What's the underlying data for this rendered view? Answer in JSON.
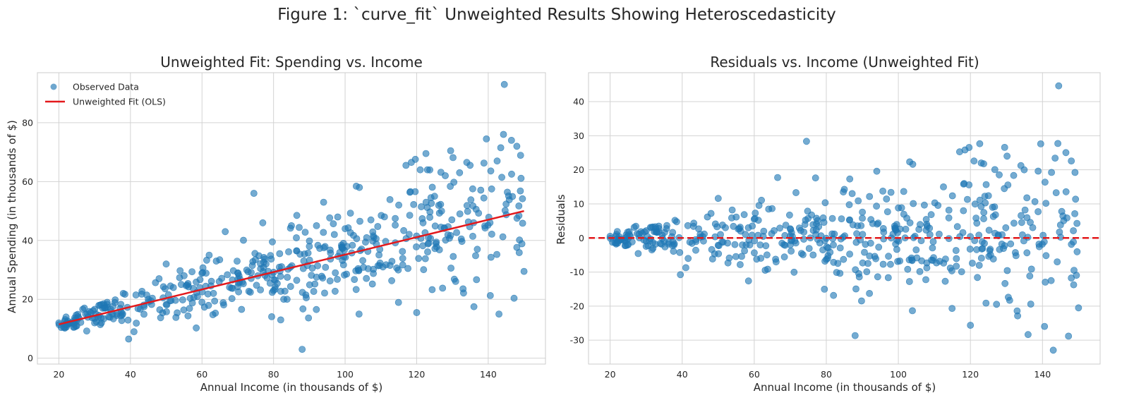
{
  "figure": {
    "suptitle": "Figure 1: `curve_fit` Unweighted Results Showing Heteroscedasticity"
  },
  "colors": {
    "points": "#1f77b4",
    "fit_line": "#e3191c",
    "zero_line": "#e3191c",
    "grid": "#d3d3d3",
    "spine": "#cccccc"
  },
  "chart_data": [
    {
      "type": "scatter",
      "title": "Unweighted Fit: Spending vs. Income",
      "xlabel": "Annual Income (in thousands of $)",
      "ylabel": "Annual Spending (in thousands of $)",
      "xlim": [
        14,
        156
      ],
      "ylim": [
        -2,
        97
      ],
      "xticks": [
        20,
        40,
        60,
        80,
        100,
        120,
        140
      ],
      "yticks": [
        0,
        20,
        40,
        60,
        80
      ],
      "grid": true,
      "legend_position": "upper-left",
      "legend": [
        "Observed Data",
        "Unweighted Fit (OLS)"
      ],
      "series": [
        {
          "name": "Observed Data",
          "kind": "scatter",
          "note": "approximately 500 points; the full cloud is regenerated from a linear trend with noise growing with income",
          "points_read": [
            [
              20,
              12
            ],
            [
              22,
              14
            ],
            [
              25,
              11
            ],
            [
              28,
              15
            ],
            [
              30,
              12
            ],
            [
              33,
              17
            ],
            [
              35,
              15
            ],
            [
              38,
              22
            ],
            [
              39.5,
              6.5
            ],
            [
              41,
              9
            ],
            [
              45,
              20
            ],
            [
              48,
              27
            ],
            [
              50,
              32
            ],
            [
              52,
              24
            ],
            [
              55,
              28
            ],
            [
              60,
              19
            ],
            [
              62,
              35
            ],
            [
              64,
              33
            ],
            [
              66.5,
              43
            ],
            [
              70,
              29
            ],
            [
              74.5,
              56
            ],
            [
              77,
              46
            ],
            [
              80,
              23
            ],
            [
              82,
              13
            ],
            [
              85,
              45
            ],
            [
              86.5,
              48.5
            ],
            [
              88,
              3
            ],
            [
              90,
              38
            ],
            [
              92,
              45
            ],
            [
              94,
              53
            ],
            [
              97,
              42
            ],
            [
              100,
              44
            ],
            [
              104,
              58
            ],
            [
              108,
              41
            ],
            [
              111,
              48
            ],
            [
              115,
              52
            ],
            [
              117,
              65.5
            ],
            [
              118.5,
              66.5
            ],
            [
              120,
              15.5
            ],
            [
              121,
              64
            ],
            [
              123,
              64
            ],
            [
              125,
              55
            ],
            [
              128,
              62
            ],
            [
              129.5,
              70.5
            ],
            [
              132,
              63
            ],
            [
              134,
              66.5
            ],
            [
              136,
              17.5
            ],
            [
              139.5,
              74.5
            ],
            [
              142.5,
              67
            ],
            [
              143,
              15
            ],
            [
              143.5,
              71.5
            ],
            [
              144.5,
              93
            ],
            [
              146.5,
              74
            ],
            [
              148,
              72
            ],
            [
              150,
              29.5
            ]
          ]
        },
        {
          "name": "Unweighted Fit (OLS)",
          "kind": "line",
          "x": [
            20,
            150
          ],
          "y": [
            11.5,
            50
          ]
        }
      ]
    },
    {
      "type": "scatter",
      "title": "Residuals vs. Income (Unweighted Fit)",
      "xlabel": "Annual Income (in thousands of $)",
      "ylabel": "Residuals",
      "xlim": [
        14,
        156
      ],
      "ylim": [
        -37,
        48.5
      ],
      "xticks": [
        20,
        40,
        60,
        80,
        100,
        120,
        140
      ],
      "yticks": [
        -30,
        -20,
        -10,
        0,
        10,
        20,
        30,
        40
      ],
      "grid": true,
      "reference_line": {
        "y": 0,
        "style": "dashed"
      },
      "series": [
        {
          "name": "",
          "kind": "scatter",
          "note": "residuals = observed spending minus the OLS fit; spread grows with income",
          "points_read": [
            [
              74.5,
              28.5
            ],
            [
              88,
              -28.5
            ],
            [
              144.5,
              44.5
            ],
            [
              142.5,
              -33
            ],
            [
              139.5,
              27.5
            ],
            [
              117.5,
              25.5
            ],
            [
              118.5,
              26
            ],
            [
              129.5,
              26.5
            ],
            [
              94,
              20
            ],
            [
              104,
              21.8
            ],
            [
              66.5,
              18
            ],
            [
              120,
              -25.5
            ],
            [
              136,
              -28
            ],
            [
              133,
              -27
            ],
            [
              146.5,
              25
            ],
            [
              148,
              22.5
            ],
            [
              150,
              -21
            ],
            [
              145,
              -23.5
            ],
            [
              142.5,
              -22
            ],
            [
              39.5,
              -10
            ],
            [
              41,
              -8.5
            ],
            [
              82,
              -16.5
            ],
            [
              94,
              -18.5
            ],
            [
              111,
              -16
            ]
          ]
        }
      ]
    }
  ]
}
